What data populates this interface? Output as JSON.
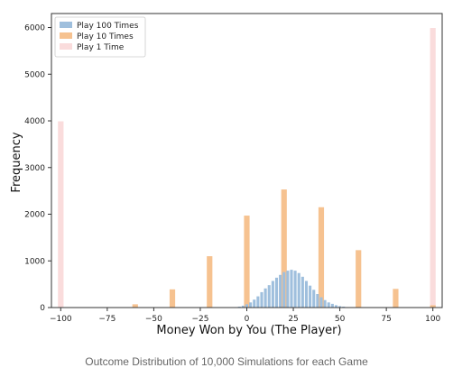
{
  "caption": "Outcome Distribution of 10,000 Simulations for each Game",
  "chart_data": {
    "type": "bar",
    "xlabel": "Money Won by You (The Player)",
    "ylabel": "Frequency",
    "xlim": [
      -105,
      105
    ],
    "ylim": [
      0,
      6300
    ],
    "xticks": [
      -100,
      -75,
      -50,
      -25,
      0,
      25,
      50,
      75,
      100
    ],
    "yticks": [
      0,
      1000,
      2000,
      3000,
      4000,
      5000,
      6000
    ],
    "legend_position": "top-left",
    "bar_width": 3,
    "series": [
      {
        "name": "Play 100 Times",
        "color": "#9fbfdd",
        "bar_width": 1.5,
        "x": [
          -6,
          -4,
          -2,
          0,
          2,
          4,
          6,
          8,
          10,
          12,
          14,
          16,
          18,
          20,
          22,
          24,
          26,
          28,
          30,
          32,
          34,
          36,
          38,
          40,
          42,
          44,
          46,
          48,
          50,
          52,
          54
        ],
        "values": [
          10,
          20,
          40,
          70,
          110,
          170,
          240,
          330,
          410,
          480,
          570,
          640,
          700,
          760,
          790,
          810,
          790,
          740,
          660,
          570,
          470,
          380,
          290,
          220,
          160,
          110,
          80,
          50,
          30,
          20,
          10
        ]
      },
      {
        "name": "Play 10 Times",
        "color": "#f6c290",
        "bar_width": 3,
        "x": [
          -60,
          -40,
          -20,
          0,
          20,
          40,
          60,
          80,
          100
        ],
        "values": [
          70,
          390,
          1100,
          1970,
          2530,
          2150,
          1230,
          400,
          50
        ]
      },
      {
        "name": "Play 1 Time",
        "color": "#fadcdc",
        "bar_width": 3,
        "x": [
          -100,
          100
        ],
        "values": [
          3990,
          5990
        ]
      }
    ]
  }
}
